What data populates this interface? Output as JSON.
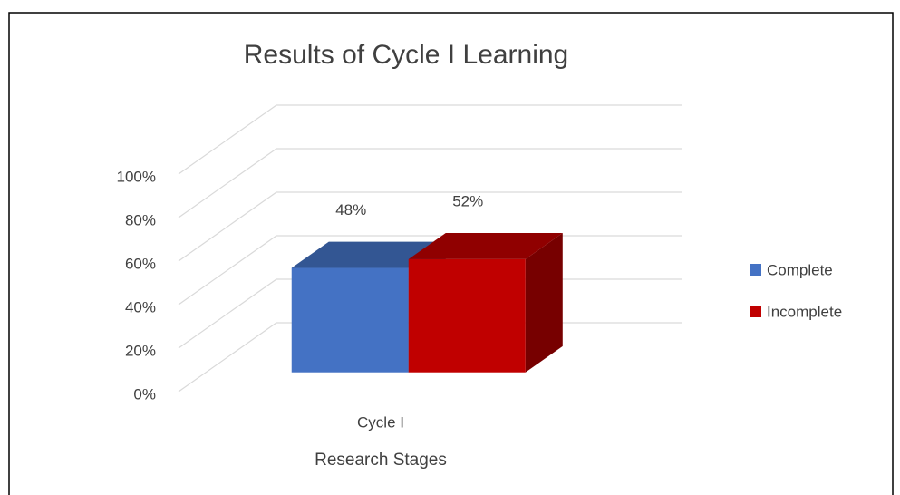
{
  "chart_data": {
    "type": "bar3d",
    "title": "Results of Cycle I Learning",
    "categories": [
      "Cycle I"
    ],
    "series": [
      {
        "name": "Complete",
        "color": "#4472c4",
        "values": [
          48
        ],
        "value_labels": [
          "48%"
        ]
      },
      {
        "name": "Incomplete",
        "color": "#c00000",
        "values": [
          52
        ],
        "value_labels": [
          "52%"
        ]
      }
    ],
    "x_label": "Research Stages",
    "ylim": [
      0,
      100
    ],
    "yticks": [
      {
        "value": 0,
        "label": "0%"
      },
      {
        "value": 20,
        "label": "20%"
      },
      {
        "value": 40,
        "label": "40%"
      },
      {
        "value": 60,
        "label": "60%"
      },
      {
        "value": 80,
        "label": "80%"
      },
      {
        "value": 100,
        "label": "100%"
      }
    ],
    "grid": true,
    "legend": "right"
  }
}
